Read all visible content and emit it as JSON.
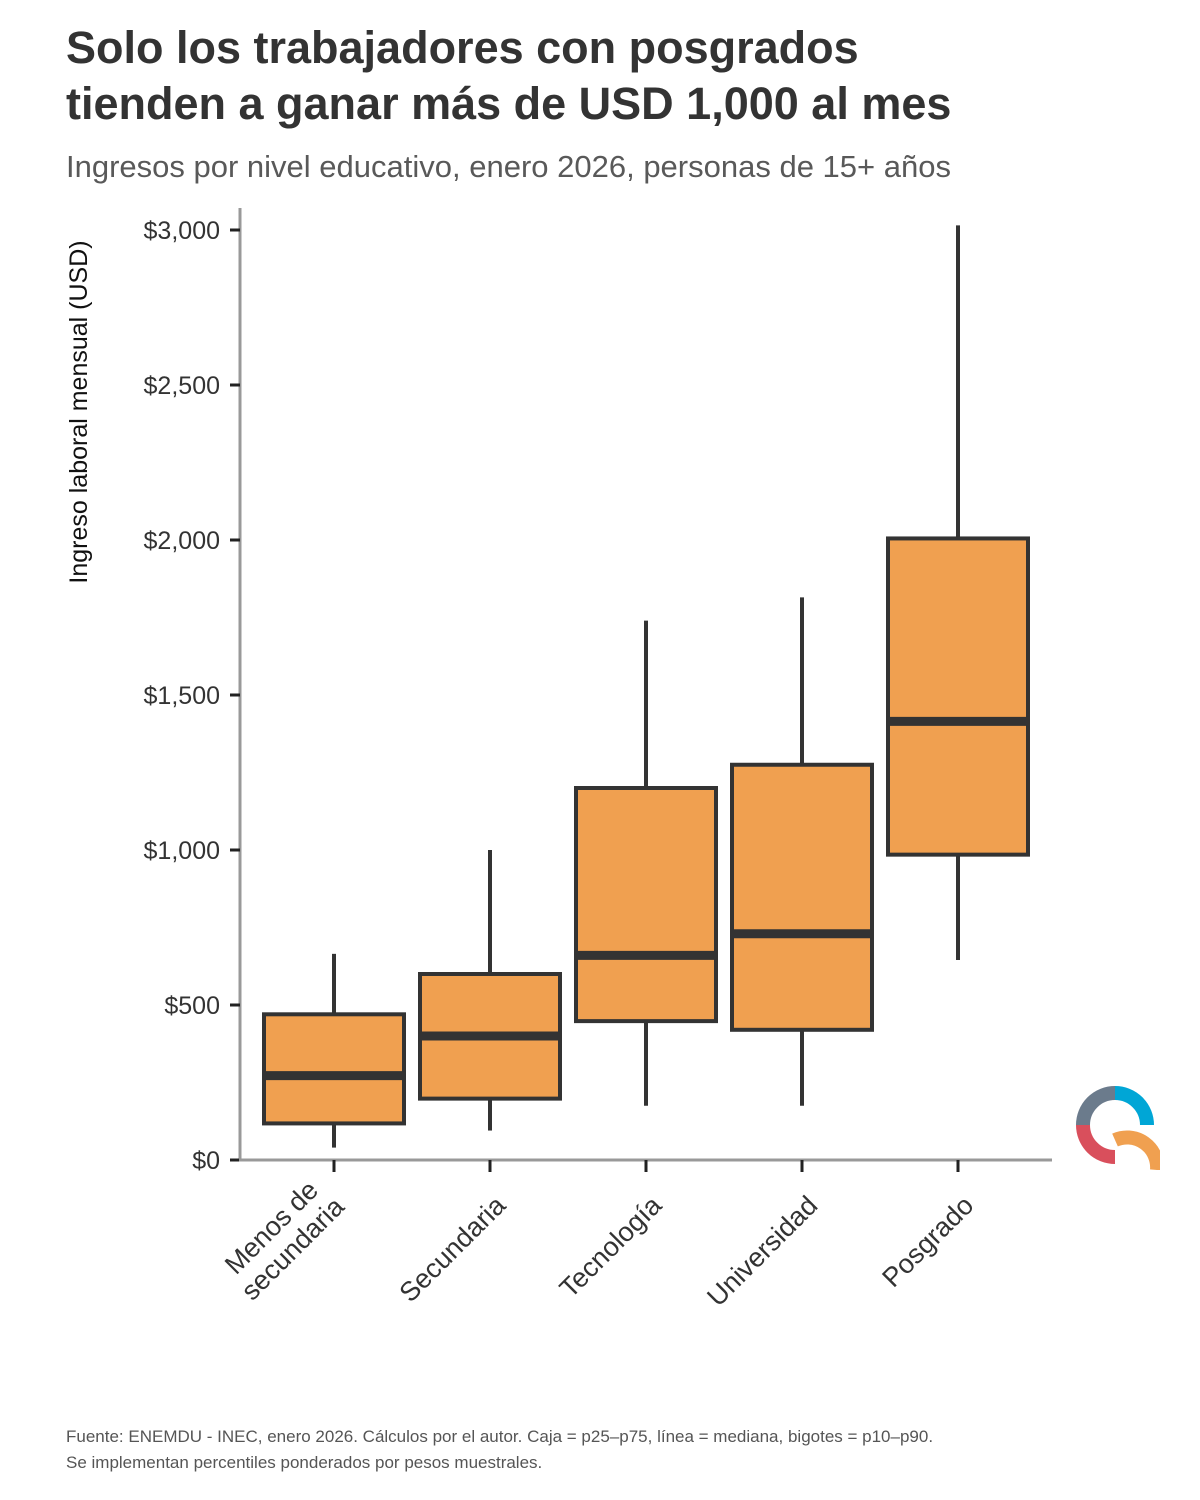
{
  "title_line1": "Solo los trabajadores con posgrados",
  "title_line2": "tienden a ganar más de USD 1,000 al mes",
  "subtitle": "Ingresos por nivel educativo, enero 2026, personas de 15+ años",
  "caption_line1": "Fuente: ENEMDU - INEC, enero 2026. Cálculos por el autor. Caja = p25–p75, línea = mediana, bigotes = p10–p90.",
  "caption_line2": "Se implementan percentiles ponderados por pesos muestrales.",
  "colors": {
    "box_fill": "#F0A050",
    "stroke": "#333333",
    "axis": "#999999"
  },
  "logo": {
    "icon": "brand-ring-logo-icon",
    "colors": [
      "#00A6D6",
      "#6B7B8C",
      "#D94F5C",
      "#F0A050"
    ]
  },
  "chart_data": {
    "type": "boxplot",
    "ylabel": "Ingreso laboral mensual (USD)",
    "xlabel": "",
    "ylim": [
      0,
      3000
    ],
    "y_ticks": [
      0,
      500,
      1000,
      1500,
      2000,
      2500,
      3000
    ],
    "y_tick_labels": [
      "$0",
      "$500",
      "$1,000",
      "$1,500",
      "$2,000",
      "$2,500",
      "$3,000"
    ],
    "grid": false,
    "categories": [
      {
        "label_lines": [
          "Menos de",
          "secundaria"
        ],
        "p10": 40,
        "p25": 118,
        "median": 272,
        "p75": 470,
        "p90": 665
      },
      {
        "label_lines": [
          "Secundaria"
        ],
        "p10": 95,
        "p25": 198,
        "median": 400,
        "p75": 600,
        "p90": 1000
      },
      {
        "label_lines": [
          "Tecnología"
        ],
        "p10": 175,
        "p25": 448,
        "median": 660,
        "p75": 1200,
        "p90": 1740
      },
      {
        "label_lines": [
          "Universidad"
        ],
        "p10": 175,
        "p25": 420,
        "median": 730,
        "p75": 1275,
        "p90": 1815
      },
      {
        "label_lines": [
          "Posgrado"
        ],
        "p10": 645,
        "p25": 985,
        "median": 1415,
        "p75": 2005,
        "p90": 3015
      }
    ]
  }
}
